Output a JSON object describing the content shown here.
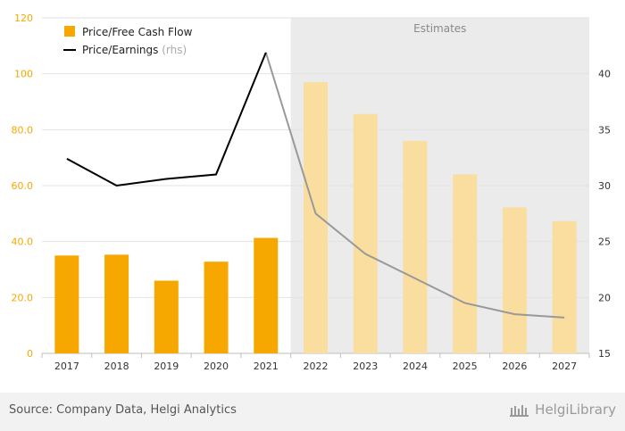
{
  "chart_data": {
    "type": "bar",
    "categories": [
      "2017",
      "2018",
      "2019",
      "2020",
      "2021",
      "2022",
      "2023",
      "2024",
      "2025",
      "2026",
      "2027"
    ],
    "estimate_start_index": 5,
    "estimates_label": "Estimates",
    "series": [
      {
        "name": "Price/Free Cash Flow",
        "type": "bar",
        "axis": "left",
        "values": [
          35.0,
          35.3,
          26.0,
          32.8,
          41.3,
          97.0,
          85.6,
          76.0,
          64.0,
          52.2,
          47.3
        ]
      },
      {
        "name": "Price/Earnings",
        "name_suffix": "(rhs)",
        "type": "line",
        "axis": "right",
        "values": [
          32.4,
          30.0,
          30.6,
          31.0,
          41.9,
          27.5,
          23.9,
          21.7,
          19.5,
          18.5,
          18.2
        ]
      }
    ],
    "y_left": {
      "min": 0,
      "max": 120,
      "ticks": [
        "0",
        "20.0",
        "40.0",
        "60.0",
        "80.0",
        "100",
        "120"
      ]
    },
    "y_right": {
      "min": 15,
      "max": 45,
      "ticks": [
        "15",
        "20",
        "25",
        "30",
        "35",
        "40"
      ]
    },
    "grid": true,
    "legend": "top-left",
    "colors": {
      "bar_actual": "#f6a800",
      "bar_estimate": "#f9dea0",
      "line_actual": "#000000",
      "line_estimate": "#999999",
      "estimate_bg": "#ebebeb",
      "left_axis_text": "#f6a800",
      "right_axis_text": "#333333"
    }
  },
  "footer": {
    "source": "Source: Company Data, Helgi Analytics",
    "brand": "HelgiLibrary"
  }
}
